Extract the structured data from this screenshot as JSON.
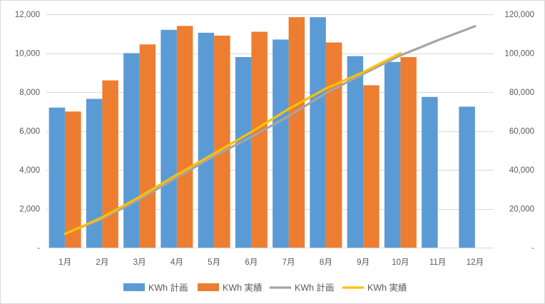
{
  "chart_data": {
    "type": "bar",
    "title": "",
    "categories": [
      "1月",
      "2月",
      "3月",
      "4月",
      "5月",
      "6月",
      "7月",
      "8月",
      "9月",
      "10月",
      "11月",
      "12月"
    ],
    "y_left": {
      "min": 0,
      "max": 12000,
      "ticks": [
        0,
        2000,
        4000,
        6000,
        8000,
        10000,
        12000
      ],
      "tick_labels": [
        "-",
        "2,000",
        "4,000",
        "6,000",
        "8,000",
        "10,000",
        "12,000"
      ]
    },
    "y_right": {
      "min": 0,
      "max": 120000,
      "ticks": [
        0,
        20000,
        40000,
        60000,
        80000,
        100000,
        120000
      ],
      "tick_labels": [
        "-",
        "20,000",
        "40,000",
        "60,000",
        "80,000",
        "100,000",
        "120,000"
      ]
    },
    "grid": true,
    "legend_position": "bottom",
    "series": [
      {
        "name": "KWh 計画",
        "kind": "bar",
        "axis": "left",
        "color": "#5b9bd5",
        "values": [
          7200,
          7650,
          10000,
          11200,
          11050,
          9800,
          10700,
          11850,
          9850,
          9550,
          7750,
          7250
        ]
      },
      {
        "name": "KWh 実績",
        "kind": "bar",
        "axis": "left",
        "color": "#ed7d31",
        "values": [
          7000,
          8600,
          10450,
          11400,
          10900,
          11100,
          11850,
          10550,
          8350,
          9800,
          null,
          null
        ]
      },
      {
        "name": "KWh 計画",
        "kind": "line",
        "axis": "right",
        "color": "#a5a5a5",
        "values": [
          7200,
          14850,
          24850,
          36050,
          47100,
          56900,
          67600,
          79450,
          89300,
          98850,
          106600,
          113850
        ]
      },
      {
        "name": "KWh 実績",
        "kind": "line",
        "axis": "right",
        "color": "#ffc000",
        "values": [
          7000,
          15600,
          26050,
          37450,
          48350,
          59450,
          71300,
          81850,
          90200,
          100000,
          null,
          null
        ]
      }
    ]
  }
}
